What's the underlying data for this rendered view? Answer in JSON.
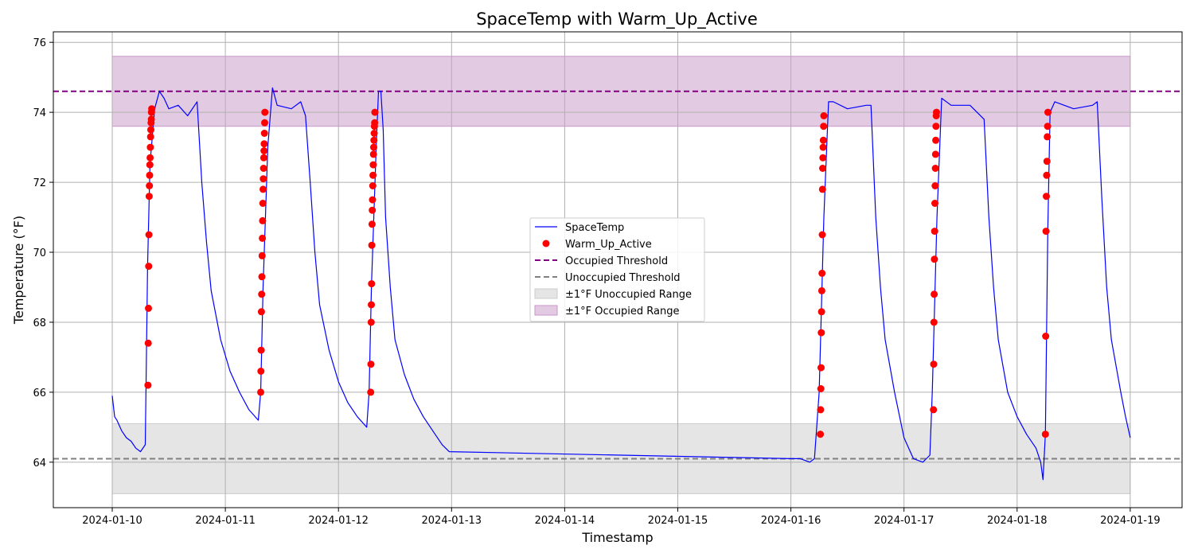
{
  "chart_data": {
    "type": "line",
    "title": "SpaceTemp with Warm_Up_Active",
    "xlabel": "Timestamp",
    "ylabel": "Temperature (°F)",
    "x_ticks": [
      "2024-01-10",
      "2024-01-11",
      "2024-01-12",
      "2024-01-13",
      "2024-01-14",
      "2024-01-15",
      "2024-01-16",
      "2024-01-17",
      "2024-01-18",
      "2024-01-19"
    ],
    "y_ticks": [
      64,
      66,
      68,
      70,
      72,
      74,
      76
    ],
    "xlim": [
      "2024-01-09 11:30",
      "2024-01-19 11:00"
    ],
    "ylim": [
      62.7,
      76.3
    ],
    "grid": true,
    "legend_position": "center",
    "thresholds": {
      "occupied": {
        "name": "Occupied Threshold",
        "value": 74.6,
        "color": "#800080"
      },
      "unoccupied": {
        "name": "Unoccupied Threshold",
        "value": 64.1,
        "color": "#808080"
      }
    },
    "bands": [
      {
        "name": "±1°F Unoccupied Range",
        "y_range": [
          63.1,
          65.1
        ],
        "x_range": [
          "2024-01-10 00:00",
          "2024-01-19 00:00"
        ],
        "color": "#cccccc"
      },
      {
        "name": "±1°F Occupied Range",
        "y_range": [
          73.6,
          75.6
        ],
        "x_range": [
          "2024-01-10 00:00",
          "2024-01-19 00:00"
        ],
        "color": "#c896c8"
      }
    ],
    "series": [
      {
        "name": "SpaceTemp",
        "kind": "line",
        "color": "#0000ff",
        "points": [
          [
            "2024-01-10 00:00",
            65.9
          ],
          [
            "2024-01-10 00:30",
            65.3
          ],
          [
            "2024-01-10 01:00",
            65.2
          ],
          [
            "2024-01-10 02:00",
            64.9
          ],
          [
            "2024-01-10 03:00",
            64.7
          ],
          [
            "2024-01-10 04:00",
            64.6
          ],
          [
            "2024-01-10 05:00",
            64.4
          ],
          [
            "2024-01-10 06:00",
            64.3
          ],
          [
            "2024-01-10 07:00",
            64.5
          ],
          [
            "2024-01-10 07:30",
            69.6
          ],
          [
            "2024-01-10 08:00",
            72.5
          ],
          [
            "2024-01-10 09:00",
            74.1
          ],
          [
            "2024-01-10 10:00",
            74.6
          ],
          [
            "2024-01-10 11:00",
            74.4
          ],
          [
            "2024-01-10 12:00",
            74.1
          ],
          [
            "2024-01-10 14:00",
            74.2
          ],
          [
            "2024-01-10 16:00",
            73.9
          ],
          [
            "2024-01-10 18:00",
            74.3
          ],
          [
            "2024-01-10 19:00",
            72.0
          ],
          [
            "2024-01-10 20:00",
            70.3
          ],
          [
            "2024-01-10 21:00",
            68.9
          ],
          [
            "2024-01-10 23:00",
            67.5
          ],
          [
            "2024-01-11 01:00",
            66.6
          ],
          [
            "2024-01-11 03:00",
            66.0
          ],
          [
            "2024-01-11 05:00",
            65.5
          ],
          [
            "2024-01-11 07:00",
            65.2
          ],
          [
            "2024-01-11 07:30",
            66.0
          ],
          [
            "2024-01-11 08:00",
            69.0
          ],
          [
            "2024-01-11 09:00",
            73.0
          ],
          [
            "2024-01-11 10:00",
            74.7
          ],
          [
            "2024-01-11 11:00",
            74.2
          ],
          [
            "2024-01-11 14:00",
            74.1
          ],
          [
            "2024-01-11 16:00",
            74.3
          ],
          [
            "2024-01-11 17:00",
            73.9
          ],
          [
            "2024-01-11 18:00",
            72.0
          ],
          [
            "2024-01-11 19:00",
            70.0
          ],
          [
            "2024-01-11 20:00",
            68.5
          ],
          [
            "2024-01-11 22:00",
            67.2
          ],
          [
            "2024-01-12 00:00",
            66.3
          ],
          [
            "2024-01-12 02:00",
            65.7
          ],
          [
            "2024-01-12 04:00",
            65.3
          ],
          [
            "2024-01-12 06:00",
            65.0
          ],
          [
            "2024-01-12 06:30",
            66.0
          ],
          [
            "2024-01-12 07:00",
            69.0
          ],
          [
            "2024-01-12 08:00",
            73.0
          ],
          [
            "2024-01-12 08:30",
            74.6
          ],
          [
            "2024-01-12 09:00",
            74.6
          ],
          [
            "2024-01-12 09:30",
            73.5
          ],
          [
            "2024-01-12 10:00",
            71.0
          ],
          [
            "2024-01-12 11:00",
            69.0
          ],
          [
            "2024-01-12 12:00",
            67.5
          ],
          [
            "2024-01-12 14:00",
            66.5
          ],
          [
            "2024-01-12 16:00",
            65.8
          ],
          [
            "2024-01-12 18:00",
            65.3
          ],
          [
            "2024-01-12 20:00",
            64.9
          ],
          [
            "2024-01-12 22:00",
            64.5
          ],
          [
            "2024-01-12 23:30",
            64.3
          ],
          [
            "2024-01-16 00:00",
            64.1
          ],
          [
            "2024-01-16 02:00",
            64.1
          ],
          [
            "2024-01-16 04:00",
            64.0
          ],
          [
            "2024-01-16 05:00",
            64.1
          ],
          [
            "2024-01-16 06:00",
            66.0
          ],
          [
            "2024-01-16 07:00",
            71.0
          ],
          [
            "2024-01-16 08:00",
            74.3
          ],
          [
            "2024-01-16 09:00",
            74.3
          ],
          [
            "2024-01-16 12:00",
            74.1
          ],
          [
            "2024-01-16 16:00",
            74.2
          ],
          [
            "2024-01-16 17:00",
            74.2
          ],
          [
            "2024-01-16 18:00",
            71.0
          ],
          [
            "2024-01-16 19:00",
            69.0
          ],
          [
            "2024-01-16 20:00",
            67.5
          ],
          [
            "2024-01-16 22:00",
            66.0
          ],
          [
            "2024-01-17 00:00",
            64.7
          ],
          [
            "2024-01-17 02:00",
            64.1
          ],
          [
            "2024-01-17 04:00",
            64.0
          ],
          [
            "2024-01-17 05:30",
            64.2
          ],
          [
            "2024-01-17 06:00",
            66.0
          ],
          [
            "2024-01-17 07:00",
            71.0
          ],
          [
            "2024-01-17 08:00",
            74.4
          ],
          [
            "2024-01-17 10:00",
            74.2
          ],
          [
            "2024-01-17 14:00",
            74.2
          ],
          [
            "2024-01-17 17:00",
            73.8
          ],
          [
            "2024-01-17 18:00",
            71.0
          ],
          [
            "2024-01-17 19:00",
            69.0
          ],
          [
            "2024-01-17 20:00",
            67.5
          ],
          [
            "2024-01-17 22:00",
            66.0
          ],
          [
            "2024-01-18 00:00",
            65.3
          ],
          [
            "2024-01-18 02:00",
            64.8
          ],
          [
            "2024-01-18 04:00",
            64.4
          ],
          [
            "2024-01-18 05:00",
            64.0
          ],
          [
            "2024-01-18 05:30",
            63.5
          ],
          [
            "2024-01-18 06:00",
            64.8
          ],
          [
            "2024-01-18 06:30",
            70.6
          ],
          [
            "2024-01-18 07:00",
            74.0
          ],
          [
            "2024-01-18 08:00",
            74.3
          ],
          [
            "2024-01-18 12:00",
            74.1
          ],
          [
            "2024-01-18 16:00",
            74.2
          ],
          [
            "2024-01-18 17:00",
            74.3
          ],
          [
            "2024-01-18 18:00",
            71.5
          ],
          [
            "2024-01-18 19:00",
            69.0
          ],
          [
            "2024-01-18 20:00",
            67.5
          ],
          [
            "2024-01-18 22:00",
            66.0
          ],
          [
            "2024-01-18 23:00",
            65.3
          ],
          [
            "2024-01-19 00:00",
            64.7
          ]
        ]
      },
      {
        "name": "Warm_Up_Active",
        "kind": "scatter",
        "color": "#ff0000",
        "points": [
          [
            "2024-01-10 07:35",
            66.2
          ],
          [
            "2024-01-10 07:38",
            67.4
          ],
          [
            "2024-01-10 07:41",
            68.4
          ],
          [
            "2024-01-10 07:44",
            69.6
          ],
          [
            "2024-01-10 07:47",
            70.5
          ],
          [
            "2024-01-10 07:50",
            71.6
          ],
          [
            "2024-01-10 07:53",
            71.9
          ],
          [
            "2024-01-10 07:56",
            72.2
          ],
          [
            "2024-01-10 07:59",
            72.5
          ],
          [
            "2024-01-10 08:02",
            72.7
          ],
          [
            "2024-01-10 08:05",
            73.0
          ],
          [
            "2024-01-10 08:08",
            73.3
          ],
          [
            "2024-01-10 08:11",
            73.5
          ],
          [
            "2024-01-10 08:14",
            73.7
          ],
          [
            "2024-01-10 08:17",
            73.8
          ],
          [
            "2024-01-10 08:20",
            74.0
          ],
          [
            "2024-01-10 08:23",
            74.1
          ],
          [
            "2024-01-11 07:30",
            66.0
          ],
          [
            "2024-01-11 07:33",
            66.6
          ],
          [
            "2024-01-11 07:36",
            67.2
          ],
          [
            "2024-01-11 07:39",
            68.3
          ],
          [
            "2024-01-11 07:42",
            68.8
          ],
          [
            "2024-01-11 07:45",
            69.3
          ],
          [
            "2024-01-11 07:48",
            69.9
          ],
          [
            "2024-01-11 07:51",
            70.4
          ],
          [
            "2024-01-11 07:54",
            70.9
          ],
          [
            "2024-01-11 07:57",
            71.4
          ],
          [
            "2024-01-11 08:00",
            71.8
          ],
          [
            "2024-01-11 08:03",
            72.1
          ],
          [
            "2024-01-11 08:06",
            72.4
          ],
          [
            "2024-01-11 08:09",
            72.7
          ],
          [
            "2024-01-11 08:12",
            72.9
          ],
          [
            "2024-01-11 08:15",
            73.1
          ],
          [
            "2024-01-11 08:18",
            73.4
          ],
          [
            "2024-01-11 08:21",
            73.7
          ],
          [
            "2024-01-11 08:24",
            74.0
          ],
          [
            "2024-01-12 06:50",
            66.0
          ],
          [
            "2024-01-12 06:53",
            66.8
          ],
          [
            "2024-01-12 06:56",
            68.0
          ],
          [
            "2024-01-12 06:59",
            68.5
          ],
          [
            "2024-01-12 07:02",
            69.1
          ],
          [
            "2024-01-12 07:05",
            70.2
          ],
          [
            "2024-01-12 07:08",
            70.8
          ],
          [
            "2024-01-12 07:11",
            71.2
          ],
          [
            "2024-01-12 07:14",
            71.5
          ],
          [
            "2024-01-12 07:17",
            71.9
          ],
          [
            "2024-01-12 07:20",
            72.2
          ],
          [
            "2024-01-12 07:23",
            72.5
          ],
          [
            "2024-01-12 07:26",
            72.8
          ],
          [
            "2024-01-12 07:29",
            73.0
          ],
          [
            "2024-01-12 07:32",
            73.2
          ],
          [
            "2024-01-12 07:35",
            73.4
          ],
          [
            "2024-01-12 07:38",
            73.6
          ],
          [
            "2024-01-12 07:41",
            73.7
          ],
          [
            "2024-01-12 07:44",
            74.0
          ],
          [
            "2024-01-16 06:15",
            64.8
          ],
          [
            "2024-01-16 06:18",
            65.5
          ],
          [
            "2024-01-16 06:21",
            66.1
          ],
          [
            "2024-01-16 06:24",
            66.7
          ],
          [
            "2024-01-16 06:27",
            67.7
          ],
          [
            "2024-01-16 06:30",
            68.3
          ],
          [
            "2024-01-16 06:33",
            68.9
          ],
          [
            "2024-01-16 06:36",
            69.4
          ],
          [
            "2024-01-16 06:39",
            70.5
          ],
          [
            "2024-01-16 06:42",
            71.8
          ],
          [
            "2024-01-16 06:45",
            72.4
          ],
          [
            "2024-01-16 06:48",
            72.7
          ],
          [
            "2024-01-16 06:51",
            73.0
          ],
          [
            "2024-01-16 06:54",
            73.2
          ],
          [
            "2024-01-16 06:57",
            73.6
          ],
          [
            "2024-01-16 07:00",
            73.9
          ],
          [
            "2024-01-17 06:15",
            65.5
          ],
          [
            "2024-01-17 06:18",
            66.8
          ],
          [
            "2024-01-17 06:21",
            68.0
          ],
          [
            "2024-01-17 06:24",
            68.8
          ],
          [
            "2024-01-17 06:27",
            69.8
          ],
          [
            "2024-01-17 06:30",
            70.6
          ],
          [
            "2024-01-17 06:33",
            71.4
          ],
          [
            "2024-01-17 06:36",
            71.9
          ],
          [
            "2024-01-17 06:39",
            72.4
          ],
          [
            "2024-01-17 06:42",
            72.8
          ],
          [
            "2024-01-17 06:45",
            73.2
          ],
          [
            "2024-01-17 06:48",
            73.6
          ],
          [
            "2024-01-17 06:51",
            73.9
          ],
          [
            "2024-01-17 06:54",
            74.0
          ],
          [
            "2024-01-18 06:00",
            64.8
          ],
          [
            "2024-01-18 06:04",
            67.6
          ],
          [
            "2024-01-18 06:08",
            70.6
          ],
          [
            "2024-01-18 06:12",
            71.6
          ],
          [
            "2024-01-18 06:16",
            72.2
          ],
          [
            "2024-01-18 06:20",
            72.6
          ],
          [
            "2024-01-18 06:24",
            73.3
          ],
          [
            "2024-01-18 06:28",
            73.6
          ],
          [
            "2024-01-18 06:32",
            74.0
          ]
        ]
      }
    ]
  }
}
